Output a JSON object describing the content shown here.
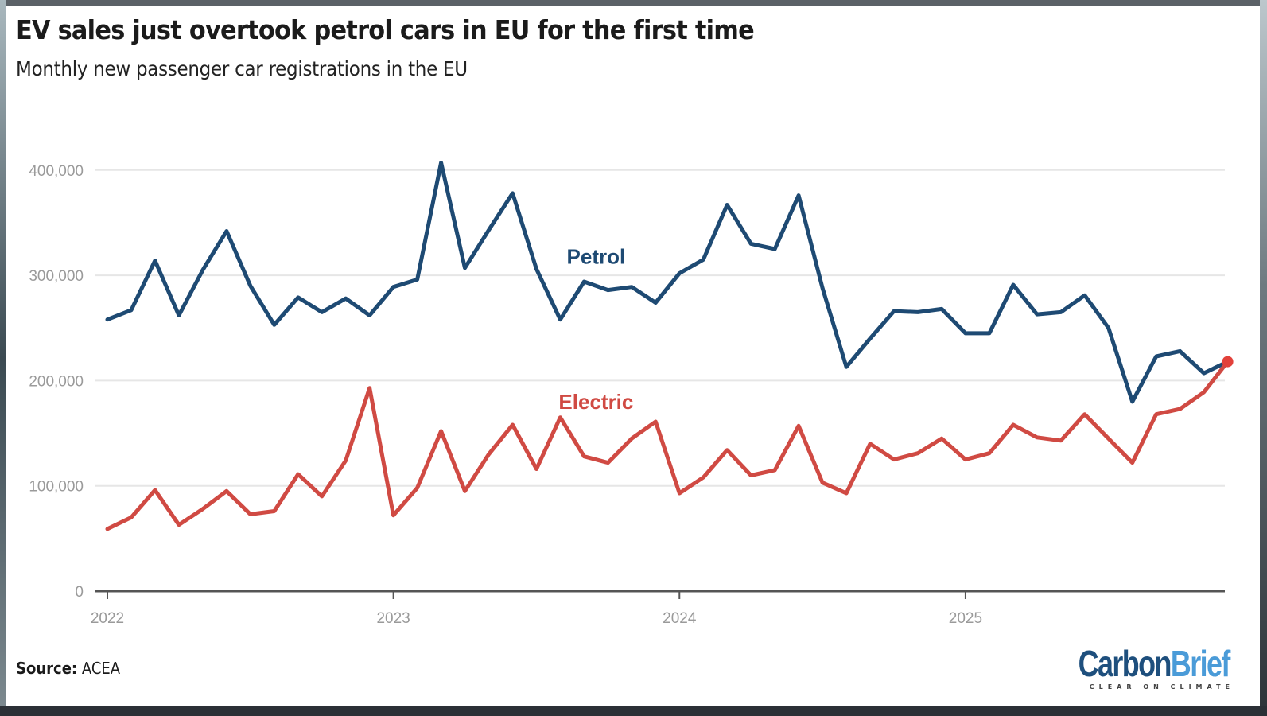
{
  "header": {
    "title": "EV sales just overtook petrol cars in EU for the first time",
    "subtitle": "Monthly new passenger car registrations in the EU"
  },
  "footer": {
    "source_label": "Source:",
    "source_value": "ACEA",
    "logo_carbon": "Carbon",
    "logo_brief": "Brief",
    "logo_tagline": "CLEAR ON CLIMATE"
  },
  "colors": {
    "petrol": "#1e4a73",
    "electric": "#d04a43",
    "grid": "#e6e6e6",
    "axis": "#555555"
  },
  "chart_data": {
    "type": "line",
    "title": "EV sales just overtook petrol cars in EU for the first time",
    "subtitle": "Monthly new passenger car registrations in the EU",
    "xlabel": "",
    "ylabel": "",
    "ylim": [
      0,
      400000
    ],
    "yticks": [
      0,
      100000,
      200000,
      300000,
      400000
    ],
    "ytick_labels": [
      "0",
      "100,000",
      "200,000",
      "300,000",
      "400,000"
    ],
    "xticks": [
      "2022",
      "2023",
      "2024",
      "2025"
    ],
    "x_start": "2022-01",
    "x_end": "2025-12",
    "grid": true,
    "legend": "inline labels",
    "x": [
      "2022-01",
      "2022-02",
      "2022-03",
      "2022-04",
      "2022-05",
      "2022-06",
      "2022-07",
      "2022-08",
      "2022-09",
      "2022-10",
      "2022-11",
      "2022-12",
      "2023-01",
      "2023-02",
      "2023-03",
      "2023-04",
      "2023-05",
      "2023-06",
      "2023-07",
      "2023-08",
      "2023-09",
      "2023-10",
      "2023-11",
      "2023-12",
      "2024-01",
      "2024-02",
      "2024-03",
      "2024-04",
      "2024-05",
      "2024-06",
      "2024-07",
      "2024-08",
      "2024-09",
      "2024-10",
      "2024-11",
      "2024-12",
      "2025-01",
      "2025-02",
      "2025-03",
      "2025-04",
      "2025-05",
      "2025-06",
      "2025-07",
      "2025-08",
      "2025-09",
      "2025-10",
      "2025-11",
      "2025-12"
    ],
    "series": [
      {
        "name": "Petrol",
        "label": "Petrol",
        "values": [
          258000,
          267000,
          314000,
          262000,
          305000,
          342000,
          290000,
          253000,
          279000,
          265000,
          278000,
          262000,
          289000,
          296000,
          407000,
          307000,
          343000,
          378000,
          306000,
          258000,
          294000,
          286000,
          289000,
          274000,
          302000,
          315000,
          367000,
          330000,
          325000,
          376000,
          288000,
          213000,
          240000,
          266000,
          265000,
          268000,
          245000,
          245000,
          291000,
          263000,
          265000,
          281000,
          250000,
          180000,
          223000,
          228000,
          207000,
          218000
        ]
      },
      {
        "name": "Electric",
        "label": "Electric",
        "values": [
          59000,
          70000,
          96000,
          63000,
          78000,
          95000,
          73000,
          76000,
          111000,
          90000,
          124000,
          193000,
          72000,
          98000,
          152000,
          95000,
          130000,
          158000,
          116000,
          165000,
          128000,
          122000,
          145000,
          161000,
          93000,
          108000,
          134000,
          110000,
          115000,
          157000,
          103000,
          93000,
          140000,
          125000,
          131000,
          145000,
          125000,
          131000,
          158000,
          146000,
          143000,
          168000,
          145000,
          122000,
          168000,
          173000,
          189000,
          218000
        ],
        "end_marker": true
      }
    ],
    "annotations": [
      {
        "text": "Petrol",
        "series": "Petrol",
        "near": "2023-09",
        "value": 318000
      },
      {
        "text": "Electric",
        "series": "Electric",
        "near": "2023-09",
        "value": 180000
      }
    ]
  }
}
